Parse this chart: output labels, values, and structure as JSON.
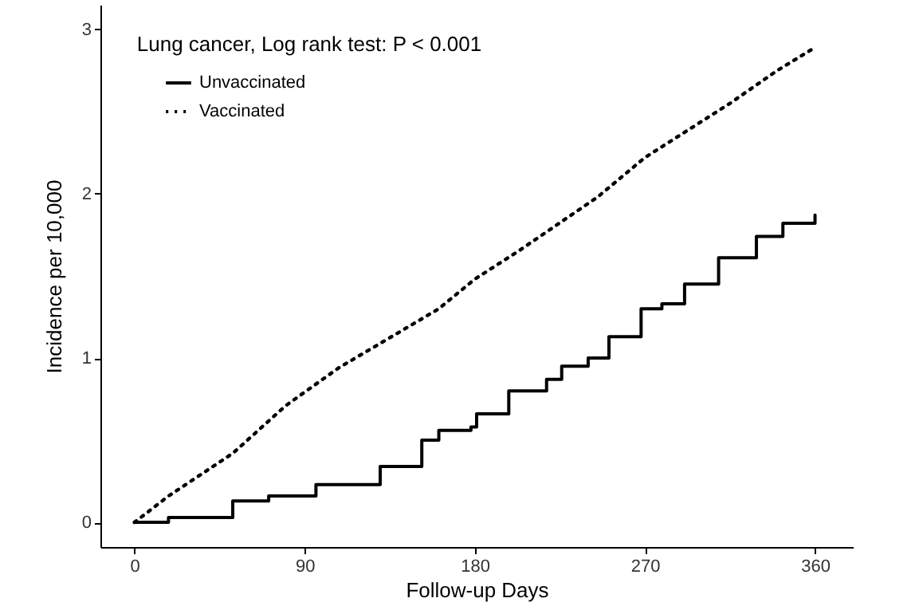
{
  "chart_data": {
    "type": "line",
    "title": "Lung cancer, Log rank test: P < 0.001",
    "xlabel": "Follow-up Days",
    "ylabel": "Incidence per 10,000",
    "xlim": [
      -18,
      380
    ],
    "xticks": [
      0,
      90,
      180,
      270,
      360
    ],
    "ylim": [
      -0.15,
      3.15
    ],
    "yticks": [
      0,
      1,
      2,
      3
    ],
    "grid": false,
    "legend": "top left",
    "marker": "none",
    "series": [
      {
        "name": "Unvaccinated",
        "type": "step",
        "line_style": "solid",
        "color": "#000000",
        "x": [
          0,
          18,
          52,
          71,
          96,
          130,
          152,
          161,
          178,
          181,
          198,
          218,
          226,
          240,
          251,
          268,
          279,
          291,
          309,
          329,
          343,
          360
        ],
        "values": [
          0,
          0.03,
          0.13,
          0.16,
          0.23,
          0.34,
          0.5,
          0.56,
          0.58,
          0.66,
          0.8,
          0.87,
          0.95,
          1.0,
          1.13,
          1.3,
          1.33,
          1.45,
          1.61,
          1.74,
          1.82,
          1.87
        ]
      },
      {
        "name": "Vaccinated",
        "type": "line",
        "line_style": "dotted",
        "color": "#000000",
        "x": [
          0,
          18,
          52,
          80,
          108,
          136,
          161,
          180,
          203,
          245,
          270,
          315,
          340,
          360
        ],
        "values": [
          0,
          0.16,
          0.42,
          0.71,
          0.94,
          1.13,
          1.3,
          1.48,
          1.65,
          1.98,
          2.22,
          2.55,
          2.75,
          2.89
        ]
      }
    ]
  }
}
